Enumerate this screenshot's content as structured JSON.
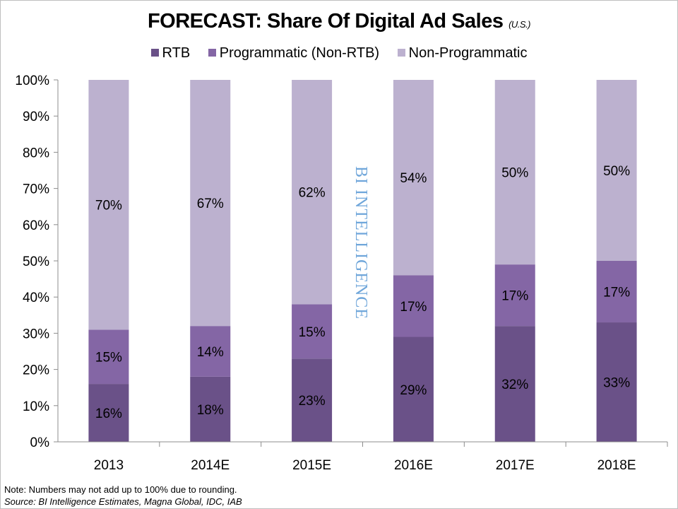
{
  "chart_data": {
    "type": "bar",
    "stacked": true,
    "title": "FORECAST: Share Of Digital Ad Sales",
    "subtitle": "(U.S.)",
    "categories": [
      "2013",
      "2014E",
      "2015E",
      "2016E",
      "2017E",
      "2018E"
    ],
    "series": [
      {
        "name": "RTB",
        "values": [
          16,
          18,
          23,
          29,
          32,
          33
        ],
        "color": "#6a5188"
      },
      {
        "name": "Programmatic (Non-RTB)",
        "values": [
          15,
          14,
          15,
          17,
          17,
          17
        ],
        "color": "#8466a5"
      },
      {
        "name": "Non-Programmatic",
        "values": [
          70,
          67,
          62,
          54,
          50,
          50
        ],
        "color": "#bcb1cf"
      }
    ],
    "ylim": [
      0,
      100
    ],
    "yticks": [
      "0%",
      "10%",
      "20%",
      "30%",
      "40%",
      "50%",
      "60%",
      "70%",
      "80%",
      "90%",
      "100%"
    ],
    "grid": false,
    "legend_position": "top",
    "xlabel": "",
    "ylabel": ""
  },
  "watermark": "BI INTELLIGENCE",
  "watermark_color": "#6fa6da",
  "notes": {
    "note": "Note: Numbers may not add up to 100% due to rounding.",
    "source": "Source: BI Intelligence Estimates, Magna Global, IDC, IAB"
  }
}
